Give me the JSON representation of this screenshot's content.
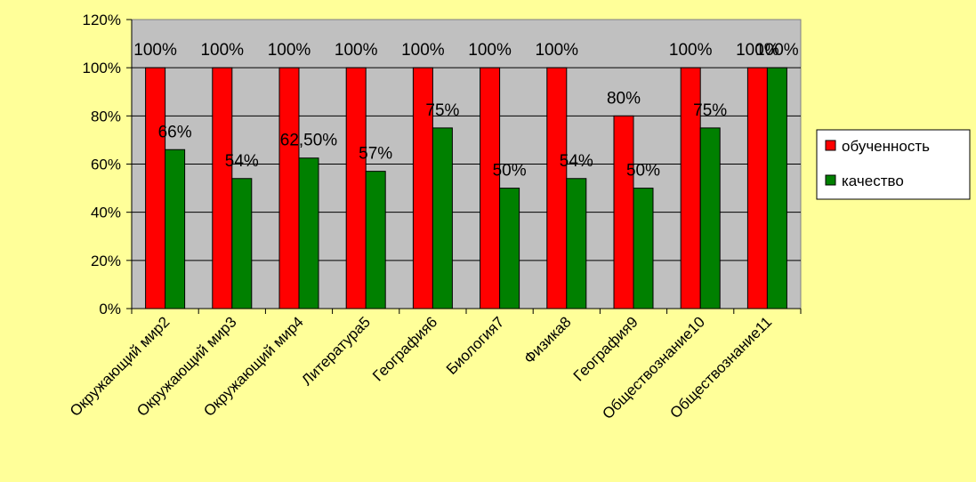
{
  "chart_data": {
    "type": "bar",
    "categories": [
      "Окружающий мир2",
      "Окружающий мир3",
      "Окружающий мир4",
      "Литература5",
      "География6",
      "Биология7",
      "Физика8",
      "География9",
      "Обществознание10",
      "Обществознание11"
    ],
    "series": [
      {
        "name": "обученность",
        "values": [
          100,
          100,
          100,
          100,
          100,
          100,
          100,
          80,
          100,
          100
        ],
        "labels": [
          "100%",
          "100%",
          "100%",
          "100%",
          "100%",
          "100%",
          "100%",
          "80%",
          "100%",
          "100%"
        ]
      },
      {
        "name": "качество",
        "values": [
          66,
          54,
          62.5,
          57,
          75,
          50,
          54,
          50,
          75,
          100
        ],
        "labels": [
          "66%",
          "54%",
          "62,50%",
          "57%",
          "75%",
          "50%",
          "54%",
          "50%",
          "75%",
          "100%"
        ]
      }
    ],
    "ylim": [
      0,
      120
    ],
    "yticks": [
      "0%",
      "20%",
      "40%",
      "60%",
      "80%",
      "100%",
      "120%"
    ],
    "grid": true,
    "legend_position": "right",
    "colors": {
      "page_bg": "#FFFF99",
      "plot_bg": "#C0C0C0",
      "series": [
        "#FF0000",
        "#008000"
      ]
    }
  }
}
